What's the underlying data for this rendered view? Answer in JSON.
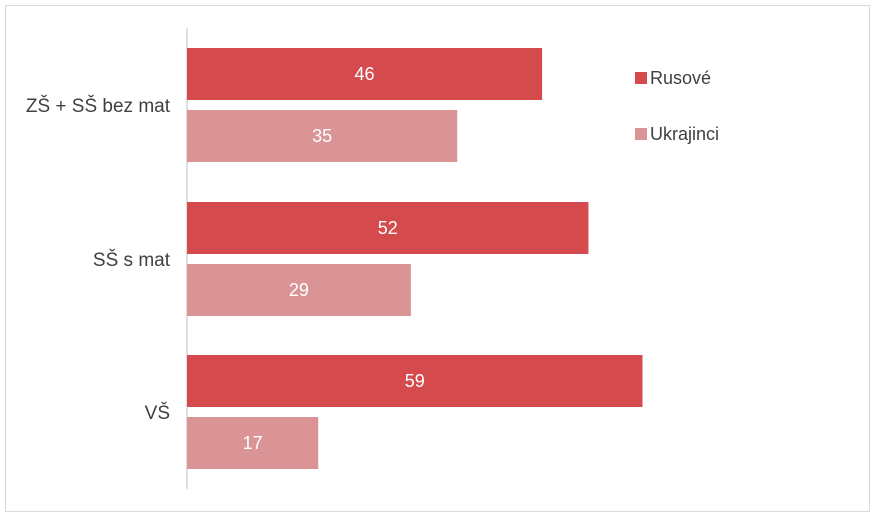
{
  "chart_data": {
    "type": "bar",
    "orientation": "horizontal",
    "categories": [
      "ZŠ + SŠ bez mat",
      "SŠ s mat",
      "VŠ"
    ],
    "series": [
      {
        "name": "Rusové",
        "color": "#d44a4d",
        "values": [
          46,
          52,
          59
        ]
      },
      {
        "name": "Ukrajinci",
        "color": "#db9496",
        "values": [
          35,
          29,
          17
        ]
      }
    ],
    "xlim": [
      0,
      80
    ],
    "grid": false,
    "legend": "right",
    "data_labels": true
  }
}
